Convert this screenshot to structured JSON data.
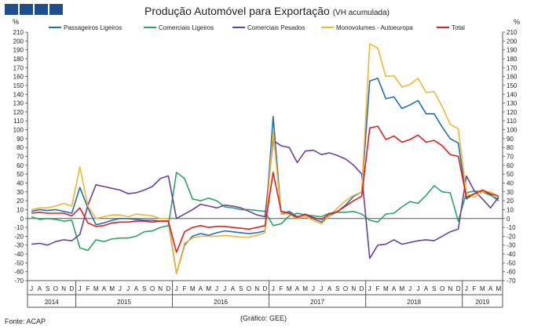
{
  "header": {
    "logo": "acap-logo"
  },
  "footer": {
    "source": "Fonte: ACAP",
    "credit": "(Gráfico: GEE)"
  },
  "chart_data": {
    "type": "line",
    "title": "Produção Automóvel para Exportação",
    "subtitle": "(VH acumulada)",
    "ylabel_left": "%",
    "ylabel_right": "%",
    "ylim": [
      -70,
      210
    ],
    "ytick_step": 10,
    "grid": false,
    "legend_position": "top",
    "month_labels": [
      "J",
      "A",
      "S",
      "O",
      "N",
      "D",
      "J",
      "F",
      "M",
      "A",
      "M",
      "J",
      "J",
      "A",
      "S",
      "O",
      "N",
      "D",
      "J",
      "F",
      "M",
      "A",
      "M",
      "J",
      "J",
      "A",
      "S",
      "O",
      "N",
      "D",
      "J",
      "F",
      "M",
      "A",
      "M",
      "J",
      "J",
      "A",
      "S",
      "O",
      "N",
      "D",
      "J",
      "F",
      "M",
      "A",
      "M",
      "J",
      "J",
      "A",
      "S",
      "O",
      "N",
      "D",
      "J",
      "F",
      "M",
      "A",
      "M"
    ],
    "years": [
      {
        "label": "2014",
        "start": 0,
        "count": 6
      },
      {
        "label": "2015",
        "start": 6,
        "count": 12
      },
      {
        "label": "2016",
        "start": 18,
        "count": 12
      },
      {
        "label": "2017",
        "start": 30,
        "count": 12
      },
      {
        "label": "2018",
        "start": 42,
        "count": 12
      },
      {
        "label": "2019",
        "start": 54,
        "count": 5
      }
    ],
    "series": [
      {
        "name": "Passageiros Ligeiros",
        "color": "#1f6fb4",
        "values": [
          8,
          10,
          9,
          10,
          8,
          6,
          35,
          12,
          -7,
          -5,
          -2,
          0,
          0,
          -1,
          -2,
          -2,
          -3,
          -3,
          -62,
          -30,
          -20,
          -17,
          -19,
          -16,
          -14,
          -15,
          -16,
          -17,
          -16,
          -14,
          115,
          5,
          8,
          2,
          4,
          0,
          -4,
          3,
          8,
          15,
          25,
          30,
          155,
          158,
          135,
          137,
          124,
          128,
          133,
          118,
          118,
          103,
          90,
          85,
          22,
          28,
          32,
          27,
          20
        ]
      },
      {
        "name": "Comerciais Ligeiros",
        "color": "#2aa565",
        "values": [
          2,
          -1,
          0,
          -1,
          -3,
          -2,
          -33,
          -36,
          -24,
          -26,
          -23,
          -22,
          -22,
          -20,
          -15,
          -14,
          -10,
          -8,
          52,
          45,
          22,
          20,
          23,
          20,
          13,
          12,
          10,
          10,
          9,
          8,
          -8,
          -6,
          3,
          6,
          4,
          3,
          2,
          6,
          7,
          7,
          8,
          5,
          -2,
          -4,
          5,
          6,
          13,
          19,
          17,
          26,
          37,
          30,
          29,
          -3,
          29,
          31,
          30,
          26,
          22
        ]
      },
      {
        "name": "Comerciais Pesados",
        "color": "#6c3f9a",
        "values": [
          -29,
          -28,
          -30,
          -26,
          -24,
          -25,
          -18,
          15,
          38,
          36,
          34,
          32,
          28,
          29,
          32,
          36,
          45,
          48,
          0,
          5,
          10,
          16,
          14,
          12,
          15,
          14,
          12,
          8,
          4,
          2,
          88,
          82,
          80,
          63,
          76,
          77,
          72,
          74,
          71,
          67,
          60,
          50,
          -45,
          -30,
          -29,
          -24,
          -29,
          -27,
          -25,
          -24,
          -25,
          -20,
          -15,
          -12,
          48,
          31,
          22,
          12,
          24
        ]
      },
      {
        "name": "Monovolumes - Autoeuropa",
        "color": "#f2b632",
        "values": [
          10,
          12,
          12,
          14,
          17,
          14,
          58,
          14,
          0,
          2,
          4,
          4,
          2,
          5,
          4,
          3,
          0,
          0,
          -62,
          -28,
          -22,
          -20,
          -20,
          -20,
          -19,
          -20,
          -21,
          -21,
          -19,
          -16,
          98,
          5,
          5,
          0,
          2,
          -2,
          -6,
          3,
          12,
          20,
          26,
          30,
          197,
          192,
          160,
          161,
          148,
          151,
          158,
          142,
          143,
          126,
          106,
          101,
          28,
          24,
          30,
          30,
          25
        ]
      },
      {
        "name": "Total",
        "color": "#e02020",
        "values": [
          6,
          7,
          6,
          6,
          6,
          3,
          12,
          -5,
          -9,
          -8,
          -5,
          -4,
          -4,
          -3,
          -3,
          -4,
          -3,
          -3,
          -38,
          -15,
          -10,
          -8,
          -10,
          -9,
          -9,
          -10,
          -11,
          -12,
          -10,
          -8,
          52,
          8,
          6,
          1,
          5,
          1,
          -1,
          5,
          8,
          14,
          20,
          25,
          102,
          104,
          89,
          93,
          86,
          89,
          94,
          86,
          88,
          82,
          72,
          70,
          24,
          28,
          32,
          28,
          25
        ]
      }
    ]
  }
}
